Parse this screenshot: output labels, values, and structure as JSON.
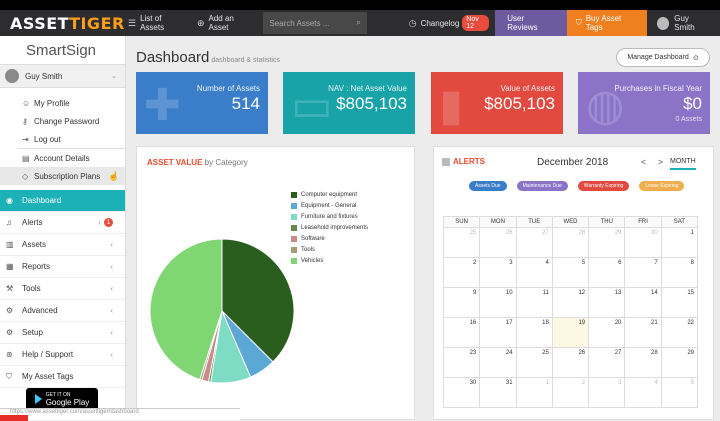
{
  "topbar": {
    "logo_main": "ASSET",
    "logo_accent": "TIGER",
    "links": [
      {
        "icon": "list-icon",
        "label": "List of Assets"
      },
      {
        "icon": "plus-icon",
        "label": "Add an Asset"
      }
    ],
    "search_placeholder": "Search Assets ...",
    "changelog_label": "Changelog",
    "changelog_badge": "Nov 12",
    "user_reviews": "User Reviews",
    "buy_tags": "Buy Asset Tags",
    "user_name": "Guy Smith"
  },
  "sidebar": {
    "brand": "SmartSign",
    "user_name": "Guy Smith",
    "sub_items": [
      {
        "icon": "user-icon",
        "label": "My Profile"
      },
      {
        "icon": "key-icon",
        "label": "Change Password"
      },
      {
        "icon": "logout-icon",
        "label": "Log out"
      },
      {
        "icon": "account-icon",
        "label": "Account Details"
      },
      {
        "icon": "diamond-icon",
        "label": "Subscription Plans"
      }
    ],
    "nav_items": [
      {
        "icon": "dashboard-icon",
        "label": "Dashboard",
        "active": true
      },
      {
        "icon": "bell-icon",
        "label": "Alerts",
        "badge": "1"
      },
      {
        "icon": "barcode-icon",
        "label": "Assets"
      },
      {
        "icon": "chart-icon",
        "label": "Reports"
      },
      {
        "icon": "wrench-icon",
        "label": "Tools"
      },
      {
        "icon": "gears-icon",
        "label": "Advanced"
      },
      {
        "icon": "gear-icon",
        "label": "Setup"
      },
      {
        "icon": "help-icon",
        "label": "Help / Support"
      },
      {
        "icon": "tag-icon",
        "label": "My Asset Tags"
      }
    ],
    "store_small": "GET IT ON",
    "store_label": "Google Play"
  },
  "main": {
    "title": "Dashboard",
    "subtitle": "dashboard & statistics",
    "manage_button": "Manage Dashboard",
    "cards": [
      {
        "label": "Number of Assets",
        "value": "514",
        "color": "#3a7dc9"
      },
      {
        "label": "NAV : Net Asset Value",
        "value": "$805,103",
        "color": "#17a3a8"
      },
      {
        "label": "Value of Assets",
        "value": "$805,103",
        "color": "#e2493f"
      },
      {
        "label": "Purchases in Fiscal Year",
        "value": "$0",
        "sub": "0 Assets",
        "color": "#8b73c8"
      }
    ],
    "asset_value": {
      "title": "ASSET VALUE",
      "subtitle": "by Category"
    },
    "calendar": {
      "title": "ALERTS",
      "month": "December 2018",
      "prev": "<",
      "next": ">",
      "mode": "MONTH",
      "pills": [
        {
          "label": "Assets Due",
          "color": "#3a7dc9"
        },
        {
          "label": "Maintenance Due",
          "color": "#8b73c8"
        },
        {
          "label": "Warranty Expiring",
          "color": "#e2493f"
        },
        {
          "label": "Lease Expiring",
          "color": "#f0ad4e"
        }
      ],
      "weekdays": [
        "SUN",
        "MON",
        "TUE",
        "WED",
        "THU",
        "FRI",
        "SAT"
      ],
      "weeks": [
        [
          "25",
          "26",
          "27",
          "28",
          "29",
          "30",
          "1"
        ],
        [
          "2",
          "3",
          "4",
          "5",
          "6",
          "7",
          "8"
        ],
        [
          "9",
          "10",
          "11",
          "12",
          "13",
          "14",
          "15"
        ],
        [
          "16",
          "17",
          "18",
          "19",
          "20",
          "21",
          "22"
        ],
        [
          "23",
          "24",
          "25",
          "26",
          "27",
          "28",
          "29"
        ],
        [
          "30",
          "31",
          "1",
          "2",
          "3",
          "4",
          "5"
        ]
      ]
    }
  },
  "chart_data": {
    "type": "pie",
    "categories": [
      "Computer equipment",
      "Equipment - General",
      "Furniture and fixtures",
      "Leasehold improvements",
      "Software",
      "Tools",
      "Vehicles"
    ],
    "colors": [
      "#2a5e1f",
      "#5ba7d6",
      "#7fdcc4",
      "#66884f",
      "#c98a8a",
      "#a89a75",
      "#7fd672"
    ],
    "values": [
      37.5,
      6,
      9,
      0.5,
      1.5,
      0.5,
      45
    ],
    "legend_position": "right"
  },
  "status_url": "https://www.assettiger.com/assettiger/dashboard"
}
